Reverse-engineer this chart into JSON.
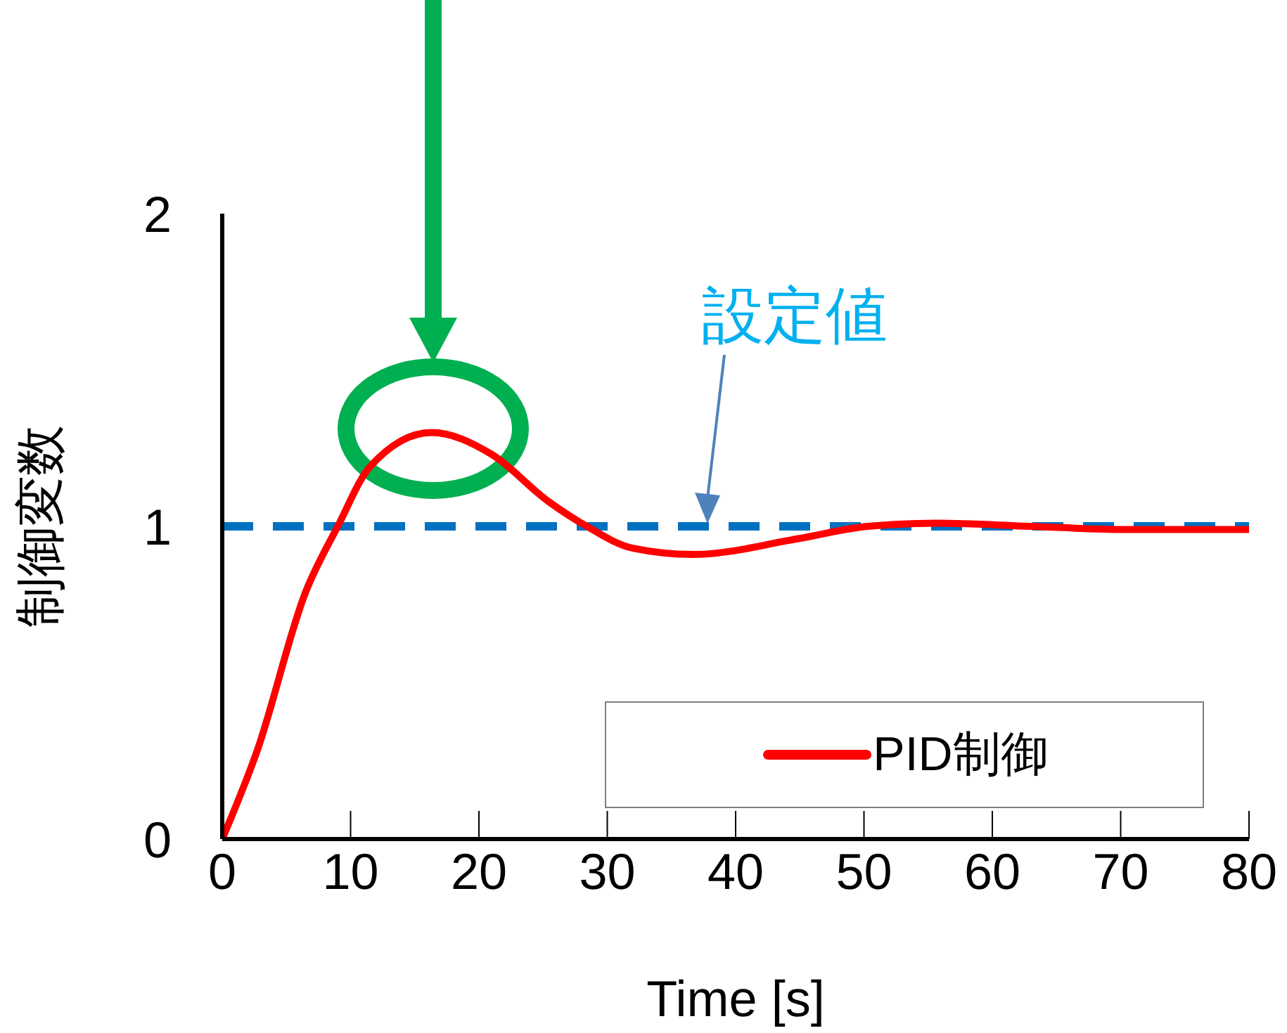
{
  "chart_data": {
    "type": "line",
    "xlabel": "Time [s]",
    "ylabel": "制御変数",
    "x": [
      0,
      2.7,
      6.5,
      9,
      11.5,
      16.3,
      21,
      25.4,
      28.4,
      32,
      36.7,
      44.8,
      50.3,
      55.8,
      63,
      70.4,
      80
    ],
    "series": [
      {
        "name": "PID制御",
        "color": "#ff0000",
        "line_style": "solid",
        "values": [
          0,
          0.28,
          0.79,
          1.0,
          1.19,
          1.3,
          1.23,
          1.08,
          1.0,
          0.93,
          0.91,
          0.96,
          1.0,
          1.01,
          1.0,
          0.99,
          0.99
        ]
      }
    ],
    "xlim": [
      0,
      80
    ],
    "xticks": [
      0,
      10,
      20,
      30,
      40,
      50,
      60,
      70,
      80
    ],
    "ylim": [
      0,
      2
    ],
    "yticks": [
      0,
      1,
      2
    ],
    "ref_lines": [
      {
        "axis": "y",
        "value": 1,
        "label": "設定値",
        "color": "#0070c0",
        "line_style": "dashed"
      }
    ],
    "grid": false,
    "legend": "bottom right",
    "marker": "none"
  }
}
